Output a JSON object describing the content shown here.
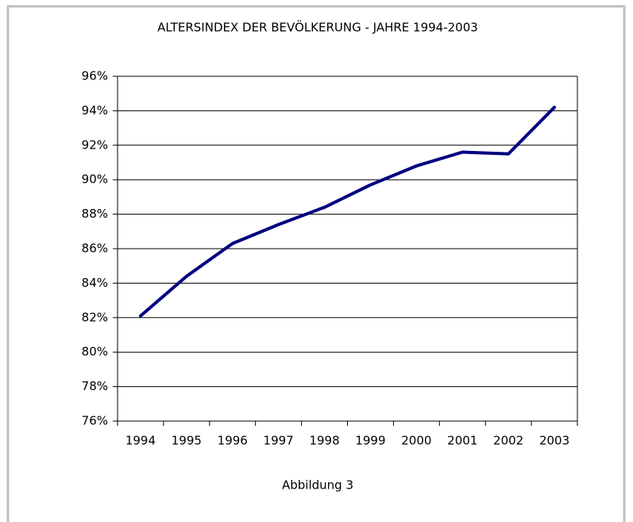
{
  "chart_data": {
    "type": "line",
    "title": "ALTERSINDEX DER BEVÖLKERUNG - JAHRE 1994-2003",
    "caption": "Abbildung 3",
    "categories": [
      "1994",
      "1995",
      "1996",
      "1997",
      "1998",
      "1999",
      "2000",
      "2001",
      "2002",
      "2003"
    ],
    "values": [
      82.1,
      84.4,
      86.3,
      87.4,
      88.4,
      89.7,
      90.8,
      91.6,
      91.5,
      94.2
    ],
    "color": "#000080",
    "ylim": [
      76,
      96
    ],
    "yticks": [
      {
        "value": 76,
        "label": "76%"
      },
      {
        "value": 78,
        "label": "78%"
      },
      {
        "value": 80,
        "label": "80%"
      },
      {
        "value": 82,
        "label": "82%"
      },
      {
        "value": 84,
        "label": "84%"
      },
      {
        "value": 86,
        "label": "86%"
      },
      {
        "value": 88,
        "label": "88%"
      },
      {
        "value": 90,
        "label": "90%"
      },
      {
        "value": 92,
        "label": "92%"
      },
      {
        "value": 94,
        "label": "94%"
      },
      {
        "value": 96,
        "label": "96%"
      }
    ],
    "grid": true
  }
}
